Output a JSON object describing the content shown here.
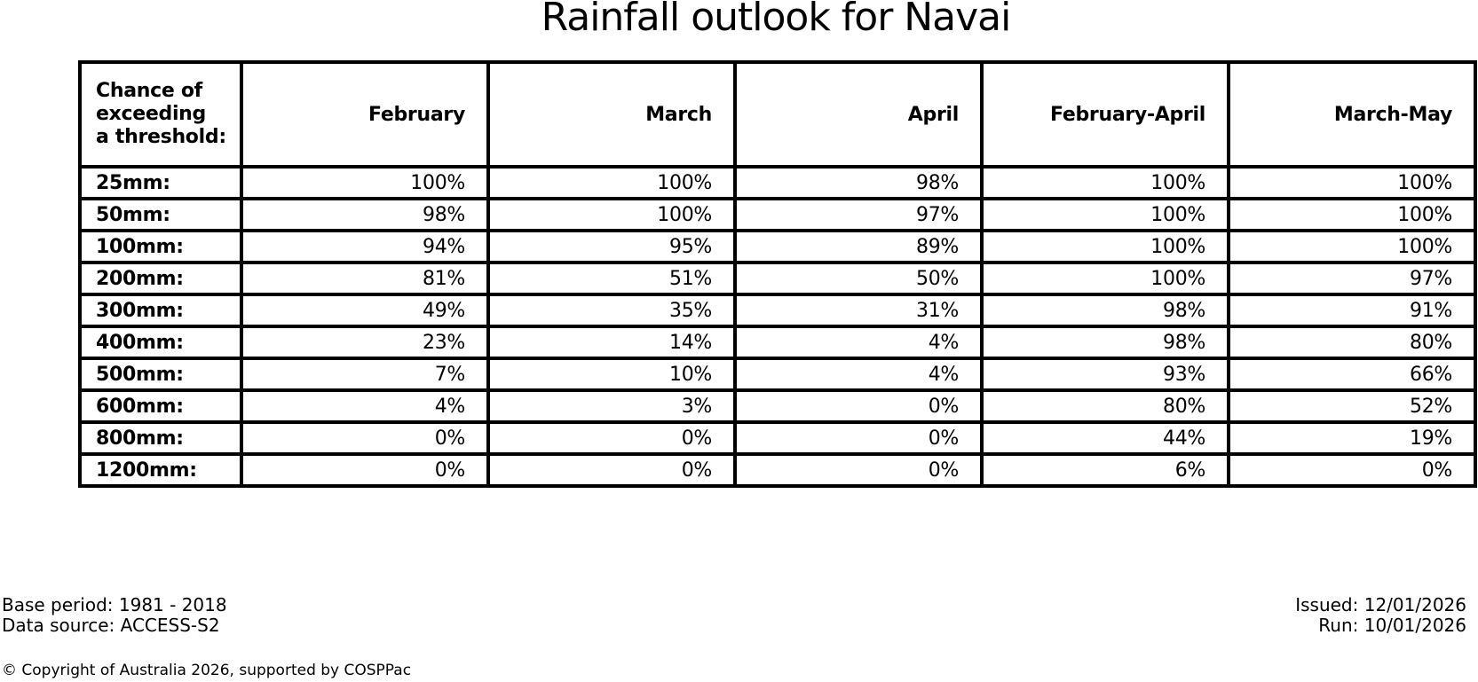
{
  "title": "Rainfall outlook for Navai",
  "chart_data": {
    "type": "table",
    "title": "Rainfall outlook for Navai",
    "row_header_label": "Chance of\nexceeding\na threshold:",
    "columns": [
      "February",
      "March",
      "April",
      "February-April",
      "March-May"
    ],
    "rows": [
      {
        "label": "25mm:",
        "values": [
          "100%",
          "100%",
          "98%",
          "100%",
          "100%"
        ]
      },
      {
        "label": "50mm:",
        "values": [
          "98%",
          "100%",
          "97%",
          "100%",
          "100%"
        ]
      },
      {
        "label": "100mm:",
        "values": [
          "94%",
          "95%",
          "89%",
          "100%",
          "100%"
        ]
      },
      {
        "label": "200mm:",
        "values": [
          "81%",
          "51%",
          "50%",
          "100%",
          "97%"
        ]
      },
      {
        "label": "300mm:",
        "values": [
          "49%",
          "35%",
          "31%",
          "98%",
          "91%"
        ]
      },
      {
        "label": "400mm:",
        "values": [
          "23%",
          "14%",
          "4%",
          "98%",
          "80%"
        ]
      },
      {
        "label": "500mm:",
        "values": [
          "7%",
          "10%",
          "4%",
          "93%",
          "66%"
        ]
      },
      {
        "label": "600mm:",
        "values": [
          "4%",
          "3%",
          "0%",
          "80%",
          "52%"
        ]
      },
      {
        "label": "800mm:",
        "values": [
          "0%",
          "0%",
          "0%",
          "44%",
          "19%"
        ]
      },
      {
        "label": "1200mm:",
        "values": [
          "0%",
          "0%",
          "0%",
          "6%",
          "0%"
        ]
      }
    ],
    "layout": {
      "grid": true,
      "value_alignment": "right",
      "label_alignment": "left"
    }
  },
  "footer": {
    "base_period": "Base period: 1981 - 2018",
    "data_source": "Data source: ACCESS-S2",
    "issued": "Issued: 12/01/2026",
    "run": "Run: 10/01/2026",
    "copyright": "© Copyright of Australia 2026, supported by COSPPac"
  },
  "colors": {
    "text": "#000000",
    "border": "#000000",
    "background": "#ffffff"
  }
}
